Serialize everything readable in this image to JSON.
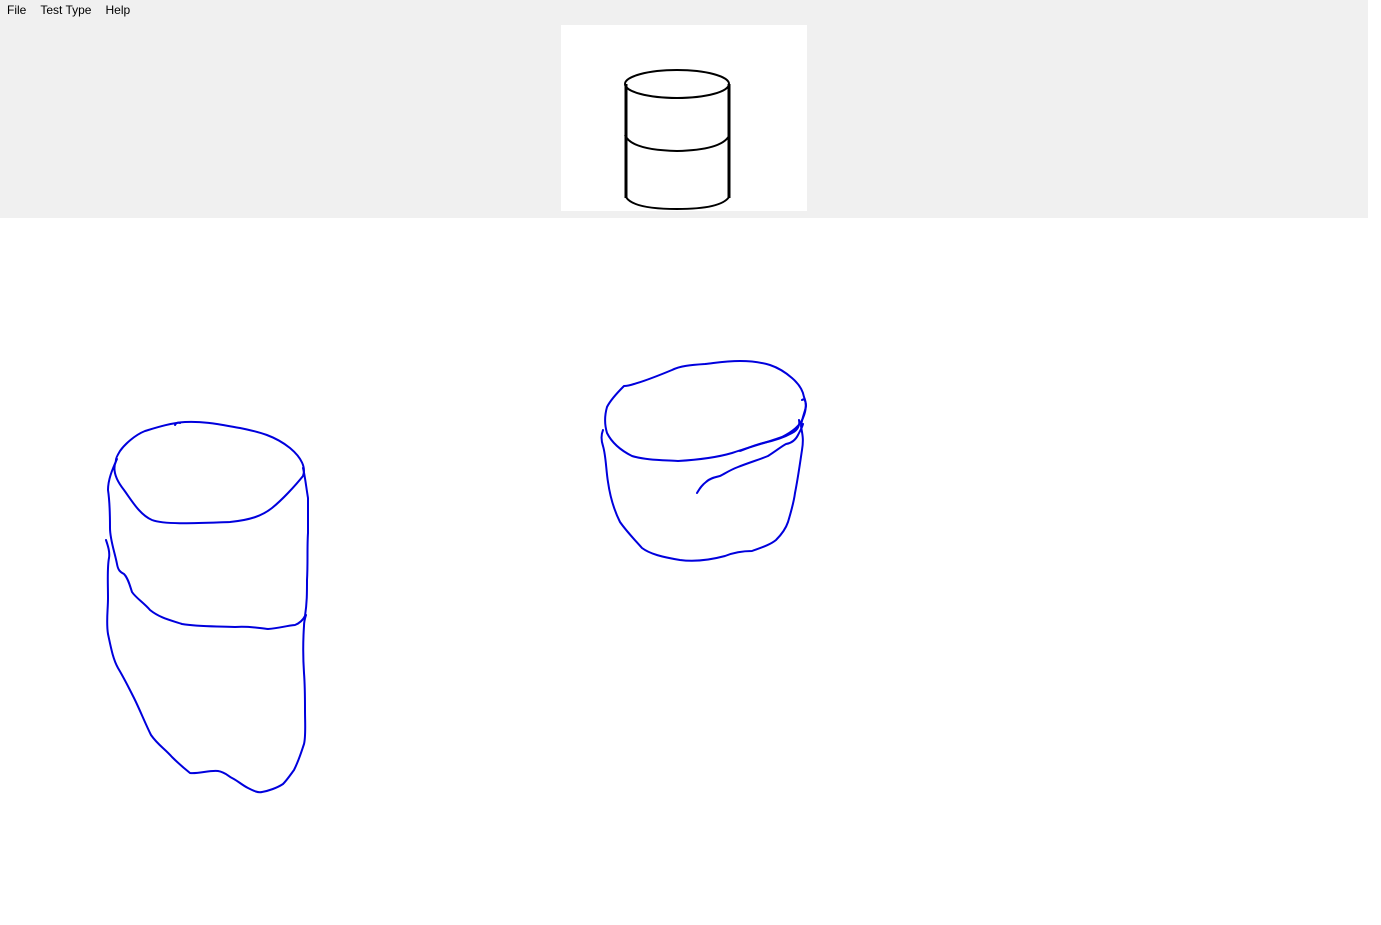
{
  "menu": {
    "file_label": "File",
    "test_type_label": "Test Type",
    "help_label": "Help"
  },
  "reference": {
    "shape_name": "cylinder-icon",
    "stroke_color": "#000000"
  },
  "canvas": {
    "stroke_color": "#0000dd",
    "stroke_count": 2
  },
  "colors": {
    "panel_background": "#f0f0f0",
    "canvas_background": "#ffffff"
  }
}
